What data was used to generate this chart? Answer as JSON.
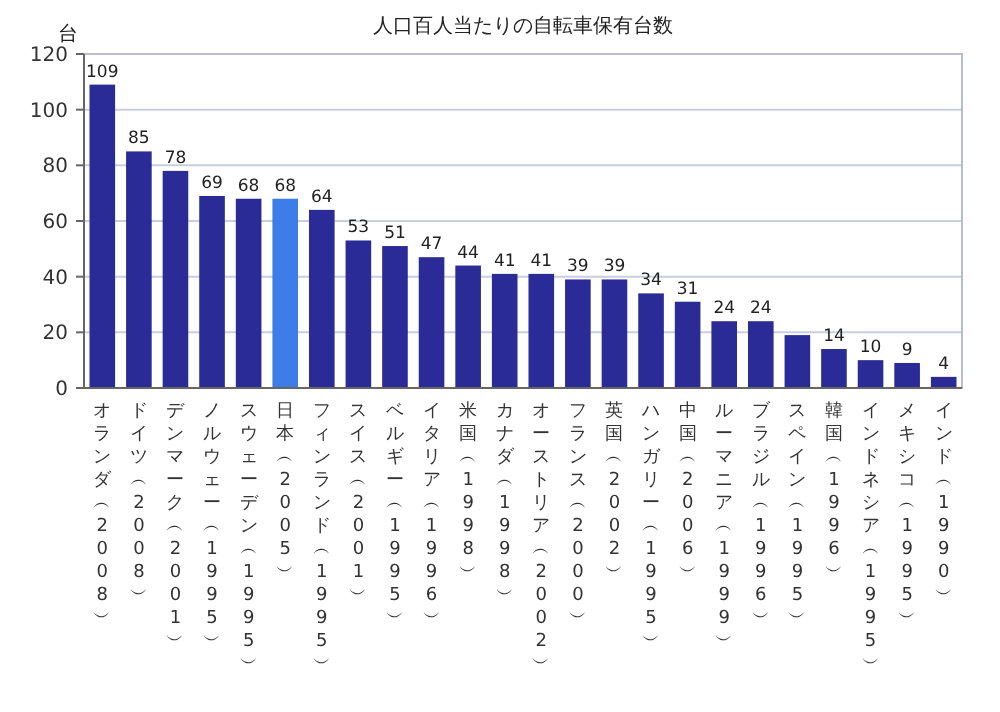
{
  "chart_data": {
    "type": "bar",
    "title": "人口百人当たりの自転車保有台数",
    "ylabel": "台",
    "categories": [
      "オランダ︵2008︶",
      "ドイツ︵2008︶",
      "デンマーク︵2001︶",
      "ノルウェー︵1995︶",
      "スウェーデン︵1995︶",
      "日本︵2005︶",
      "フィンランド︵1995︶",
      "スイス︵2001︶",
      "ベルギー︵1995︶",
      "イタリア︵1996︶",
      "米国︵1998︶",
      "カナダ︵1998︶",
      "オーストリア︵2002︶",
      "フランス︵2000︶",
      "英国︵2002︶",
      "ハンガリー︵1995︶",
      "中国︵2006︶",
      "ルーマニア︵1999︶",
      "ブラジル︵1996︶",
      "スペイン︵1995︶",
      "韓国︵1996︶",
      "インドネシア︵1995︶",
      "メキシコ︵1995︶",
      "インド︵1990︶"
    ],
    "values": [
      109,
      85,
      78,
      69,
      68,
      68,
      64,
      53,
      51,
      47,
      44,
      41,
      41,
      39,
      39,
      34,
      31,
      24,
      24,
      19,
      14,
      10,
      9,
      4
    ],
    "value_labels": [
      "109",
      "85",
      "78",
      "69",
      "68",
      "68",
      "64",
      "53",
      "51",
      "47",
      "44",
      "41",
      "41",
      "39",
      "39",
      "34",
      "31",
      "24",
      "24",
      null,
      "14",
      "10",
      "9",
      "4"
    ],
    "colors": [
      "#2b2b98",
      "#2b2b98",
      "#2b2b98",
      "#2b2b98",
      "#2b2b98",
      "#3d7de8",
      "#2b2b98",
      "#2b2b98",
      "#2b2b98",
      "#2b2b98",
      "#2b2b98",
      "#2b2b98",
      "#2b2b98",
      "#2b2b98",
      "#2b2b98",
      "#2b2b98",
      "#2b2b98",
      "#2b2b98",
      "#2b2b98",
      "#2b2b98",
      "#2b2b98",
      "#2b2b98",
      "#2b2b98",
      "#2b2b98"
    ],
    "ylim": [
      0,
      120
    ],
    "yticks": [
      0,
      20,
      40,
      60,
      80,
      100,
      120
    ],
    "grid": "y"
  }
}
